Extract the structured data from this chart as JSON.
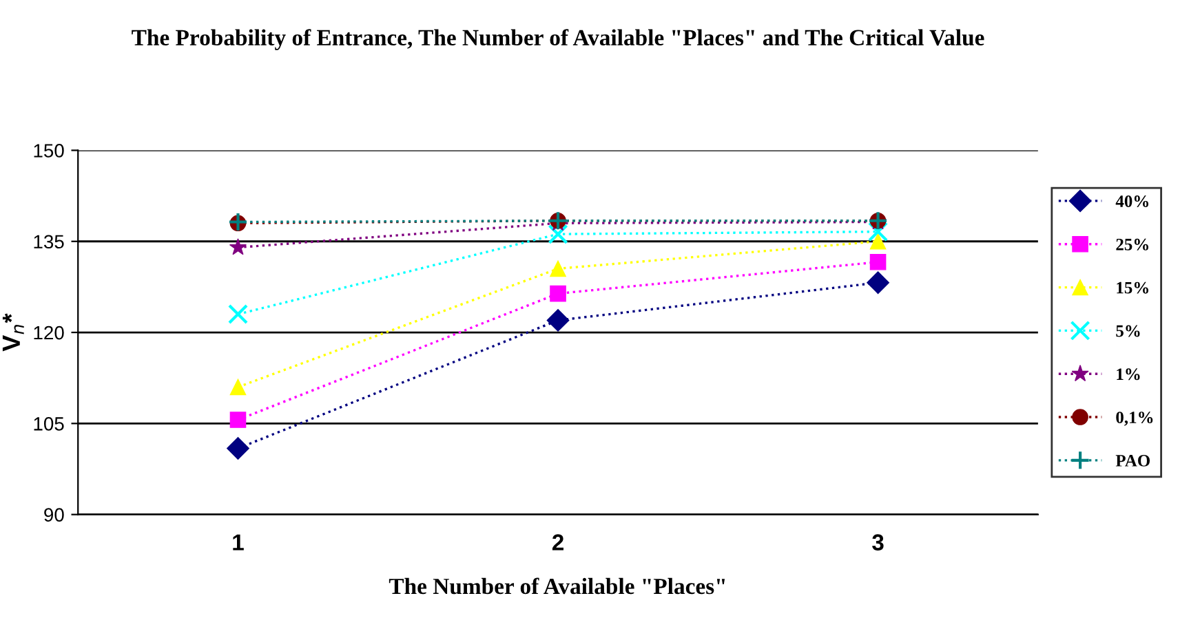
{
  "chart_data": {
    "type": "line",
    "title": "The Probability of Entrance, The Number of Available \"Places\" and The Critical Value",
    "xlabel": "The Number of Available \"Places\"",
    "ylabel": "V$_{n}$*",
    "categories": [
      "1",
      "2",
      "3"
    ],
    "series": [
      {
        "name": "40%",
        "color": "#000080",
        "marker": "diamond",
        "values": [
          100.9,
          122,
          128.2
        ]
      },
      {
        "name": "25%",
        "color": "#ff00ff",
        "marker": "square",
        "values": [
          105.6,
          126.4,
          131.6
        ]
      },
      {
        "name": "15%",
        "color": "#ffff00",
        "marker": "triangle",
        "values": [
          111,
          130.5,
          135
        ]
      },
      {
        "name": "5%",
        "color": "#00ffff",
        "marker": "x",
        "values": [
          123,
          136.2,
          136.6
        ]
      },
      {
        "name": "1%",
        "color": "#800080",
        "marker": "star",
        "values": [
          134,
          138,
          138.2
        ]
      },
      {
        "name": "0,1%",
        "color": "#800000",
        "marker": "circle",
        "values": [
          138,
          138.4,
          138.4
        ]
      },
      {
        "name": "PAO",
        "color": "#008080",
        "marker": "plus",
        "values": [
          138.2,
          138.4,
          138.4
        ]
      }
    ],
    "ylim": [
      90,
      150
    ],
    "yticks": [
      90,
      105,
      120,
      135,
      150
    ],
    "grid": "y",
    "legend": "right",
    "line_style": "dotted"
  }
}
